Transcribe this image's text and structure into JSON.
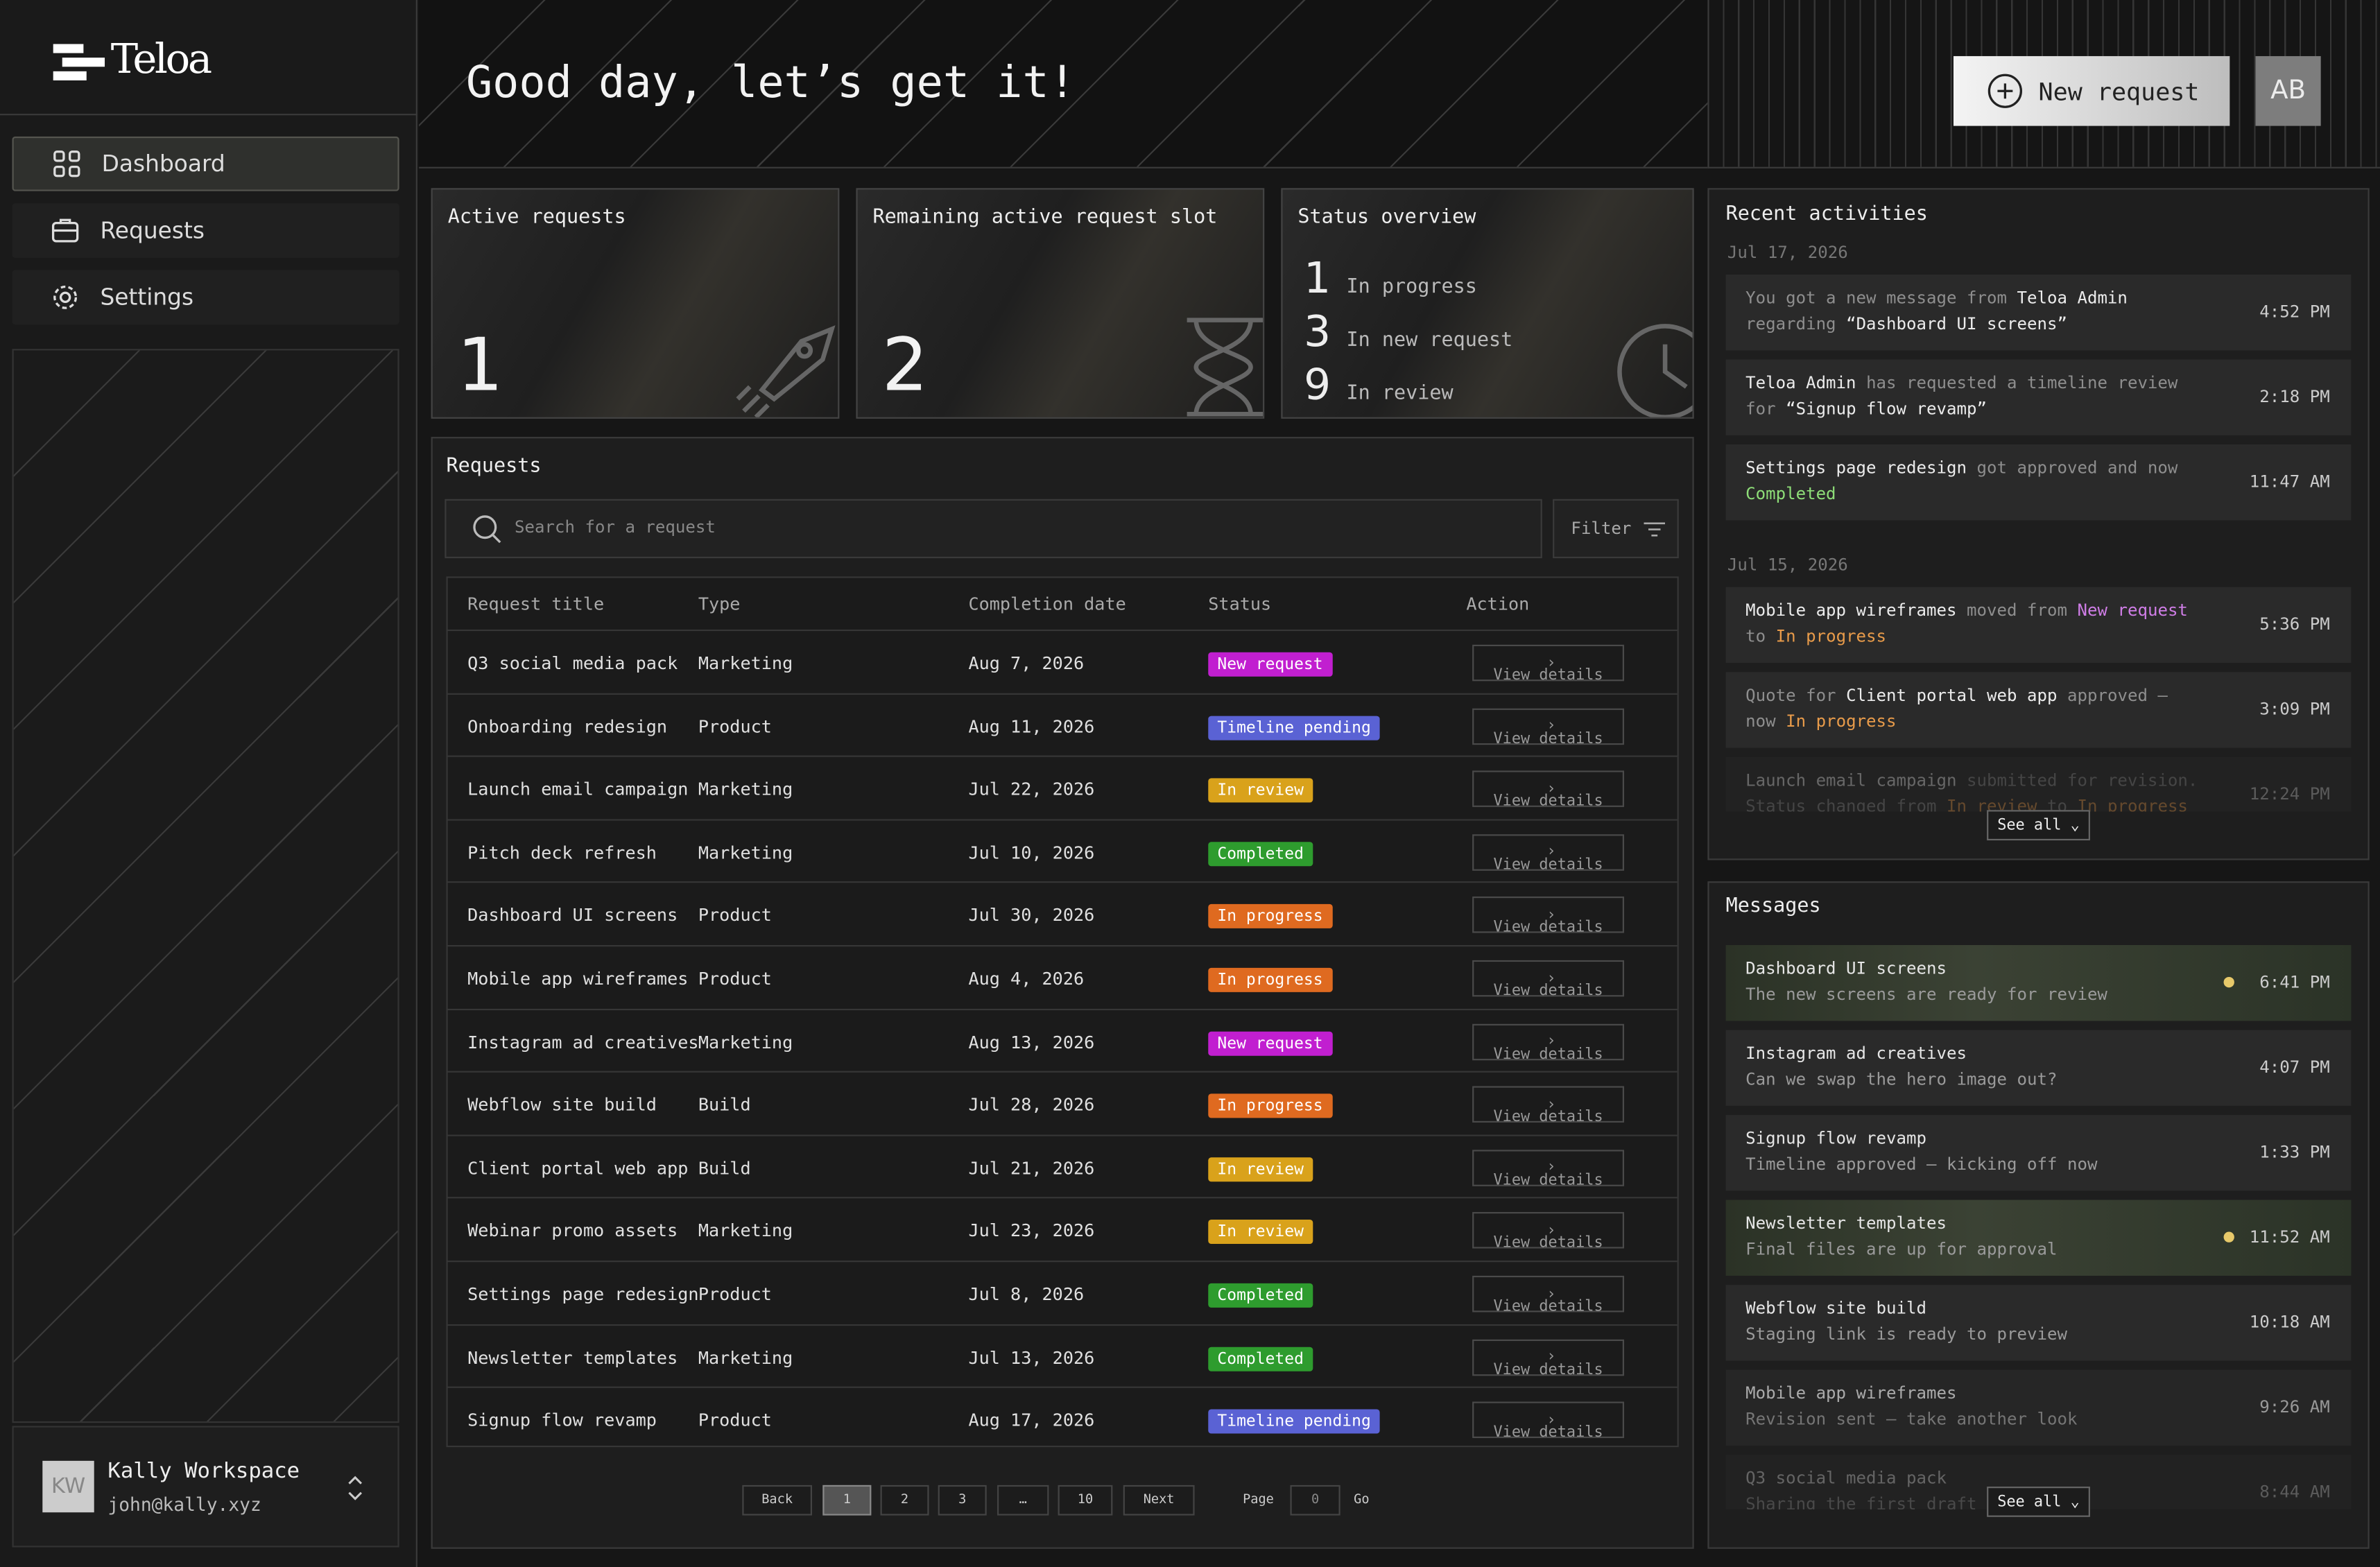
{
  "brand": "Teloa",
  "nav": [
    "Dashboard",
    "Requests",
    "Settings"
  ],
  "workspace": {
    "initials": "KW",
    "name": "Kally Workspace",
    "email": "john@kally.xyz"
  },
  "header": {
    "greeting": "Good day, let’s get it!",
    "new_request": "New request",
    "avatar": "AB"
  },
  "stats": [
    {
      "title": "Active requests",
      "value": 1
    },
    {
      "title": "Remaining active request slot",
      "value": 2
    }
  ],
  "status_overview": {
    "title": "Status overview",
    "items": [
      {
        "count": 1,
        "label": "In progress"
      },
      {
        "count": 3,
        "label": "In new request"
      },
      {
        "count": 9,
        "label": "In review"
      }
    ]
  },
  "requests": {
    "title": "Requests",
    "search_placeholder": "Search for a request",
    "filter": "Filter",
    "columns": [
      "Request title",
      "Type",
      "Completion date",
      "Status",
      "Action"
    ],
    "action": "View details",
    "status_colors": {
      "New request": "#c11fd0",
      "Timeline pending": "#5a62d4",
      "In review": "#d9a21b",
      "Completed": "#2e9c2e",
      "In progress": "#df6a20"
    },
    "rows": [
      [
        "Q3 social media pack",
        "Marketing",
        "Aug 7, 2026",
        "New request"
      ],
      [
        "Onboarding redesign",
        "Product",
        "Aug 11, 2026",
        "Timeline pending"
      ],
      [
        "Launch email campaign",
        "Marketing",
        "Jul 22, 2026",
        "In review"
      ],
      [
        "Pitch deck refresh",
        "Marketing",
        "Jul 10, 2026",
        "Completed"
      ],
      [
        "Dashboard UI screens",
        "Product",
        "Jul 30, 2026",
        "In progress"
      ],
      [
        "Mobile app wireframes",
        "Product",
        "Aug 4, 2026",
        "In progress"
      ],
      [
        "Instagram ad creatives",
        "Marketing",
        "Aug 13, 2026",
        "New request"
      ],
      [
        "Webflow site build",
        "Build",
        "Jul 28, 2026",
        "In progress"
      ],
      [
        "Client portal web app",
        "Build",
        "Jul 21, 2026",
        "In review"
      ],
      [
        "Webinar promo assets",
        "Marketing",
        "Jul 23, 2026",
        "In review"
      ],
      [
        "Settings page redesign",
        "Product",
        "Jul 8, 2026",
        "Completed"
      ],
      [
        "Newsletter templates",
        "Marketing",
        "Jul 13, 2026",
        "Completed"
      ],
      [
        "Signup flow revamp",
        "Product",
        "Aug 17, 2026",
        "Timeline pending"
      ]
    ],
    "pagination": {
      "back": "Back",
      "pages": [
        "1",
        "2",
        "3",
        "…",
        "10"
      ],
      "next": "Next",
      "page_label": "Page",
      "page_input": "0",
      "go": "Go"
    }
  },
  "activities": {
    "title": "Recent activities",
    "see_all": "See all",
    "groups": [
      {
        "date": "Jul 17, 2026",
        "items": [
          {
            "time": "4:52 PM",
            "parts": [
              {
                "text": "You got a new message from ",
                "tone": "muted"
              },
              {
                "text": "Teloa Admin",
                "tone": "hl"
              },
              {
                "text": " regarding ",
                "tone": "muted"
              },
              {
                "text": "“Dashboard UI screens”",
                "tone": "hl"
              }
            ]
          },
          {
            "time": "2:18 PM",
            "parts": [
              {
                "text": "Teloa Admin",
                "tone": "hl"
              },
              {
                "text": " has requested a timeline review for ",
                "tone": "muted"
              },
              {
                "text": "“Signup flow revamp”",
                "tone": "hl"
              }
            ]
          },
          {
            "time": "11:47 AM",
            "parts": [
              {
                "text": "Settings page redesign",
                "tone": "hl"
              },
              {
                "text": " got approved and now ",
                "tone": "muted"
              },
              {
                "text": "Completed",
                "tone": "green"
              }
            ]
          }
        ]
      },
      {
        "date": "Jul 15, 2026",
        "items": [
          {
            "time": "5:36 PM",
            "parts": [
              {
                "text": "Mobile app wireframes",
                "tone": "hl"
              },
              {
                "text": " moved from ",
                "tone": "muted"
              },
              {
                "text": "New request",
                "tone": "purple"
              },
              {
                "text": " to ",
                "tone": "muted"
              },
              {
                "text": "In progress",
                "tone": "orange"
              }
            ]
          },
          {
            "time": "3:09 PM",
            "parts": [
              {
                "text": "Quote for ",
                "tone": "muted"
              },
              {
                "text": "Client portal web app",
                "tone": "hl"
              },
              {
                "text": " approved — now ",
                "tone": "muted"
              },
              {
                "text": "In progress",
                "tone": "orange"
              }
            ]
          },
          {
            "time": "12:24 PM",
            "parts": [
              {
                "text": "Launch email campaign",
                "tone": "hl"
              },
              {
                "text": " submitted for revision. Status changed from ",
                "tone": "muted"
              },
              {
                "text": "In review",
                "tone": "orange"
              },
              {
                "text": " to ",
                "tone": "muted"
              },
              {
                "text": "In progress",
                "tone": "orange"
              }
            ]
          }
        ]
      }
    ]
  },
  "messages": {
    "title": "Messages",
    "see_all": "See all",
    "items": [
      {
        "title": "Dashboard UI screens",
        "body": "The new screens are ready for review",
        "time": "6:41 PM",
        "unread": true
      },
      {
        "title": "Instagram ad creatives",
        "body": "Can we swap the hero image out?",
        "time": "4:07 PM",
        "unread": false
      },
      {
        "title": "Signup flow revamp",
        "body": "Timeline approved — kicking off now",
        "time": "1:33 PM",
        "unread": false
      },
      {
        "title": "Newsletter templates",
        "body": "Final files are up for approval",
        "time": "11:52 AM",
        "unread": true
      },
      {
        "title": "Webflow site build",
        "body": "Staging link is ready to preview",
        "time": "10:18 AM",
        "unread": false
      },
      {
        "title": "Mobile app wireframes",
        "body": "Revision sent — take another look",
        "time": "9:26 AM",
        "unread": false
      },
      {
        "title": "Q3 social media pack",
        "body": "Sharing the first draft today",
        "time": "8:44 AM",
        "unread": false
      }
    ]
  }
}
